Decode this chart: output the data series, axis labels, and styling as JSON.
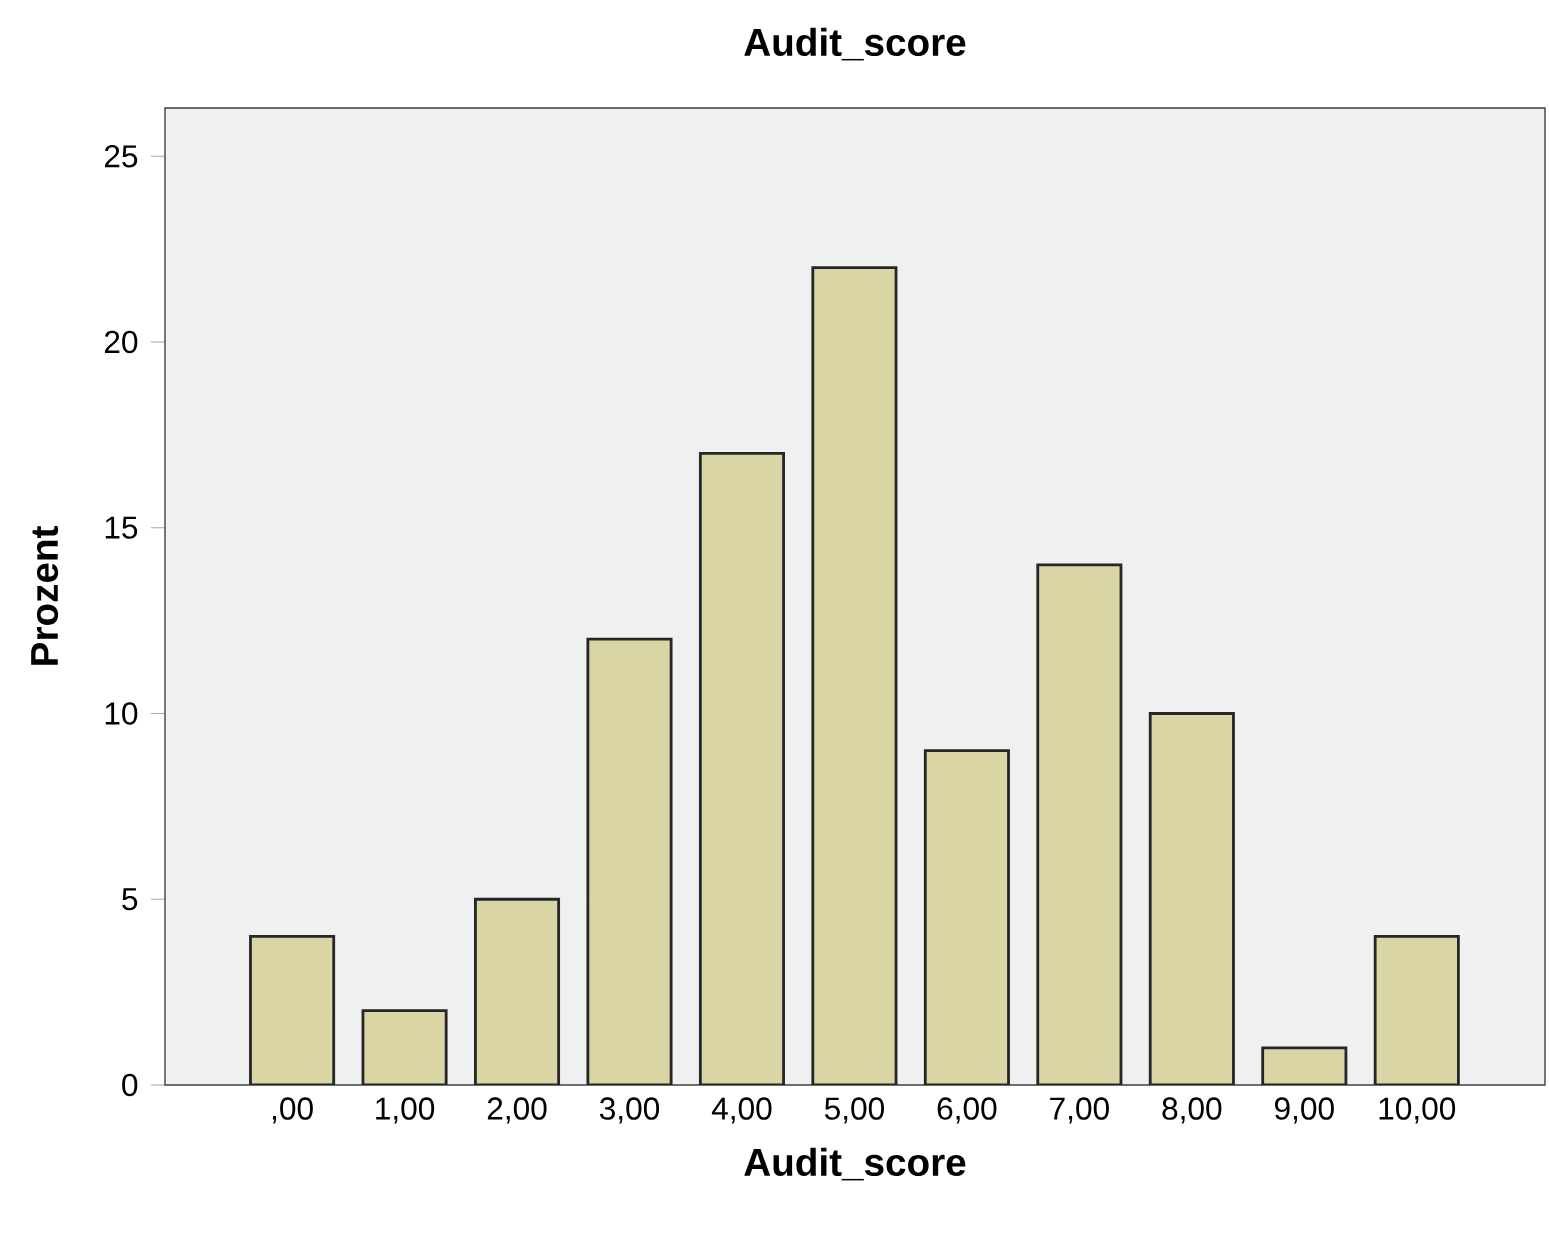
{
  "chart_data": {
    "type": "bar",
    "title": "Audit_score",
    "xlabel": "Audit_score",
    "ylabel": "Prozent",
    "categories": [
      ",00",
      "1,00",
      "2,00",
      "3,00",
      "4,00",
      "5,00",
      "6,00",
      "7,00",
      "8,00",
      "9,00",
      "10,00"
    ],
    "values": [
      4,
      2,
      5,
      12,
      17,
      22,
      9,
      14,
      10,
      1,
      4
    ],
    "color": "#dad5a4",
    "ylim": [
      0,
      26.3
    ],
    "yticks": [
      0,
      5,
      10,
      15,
      20,
      25
    ]
  }
}
